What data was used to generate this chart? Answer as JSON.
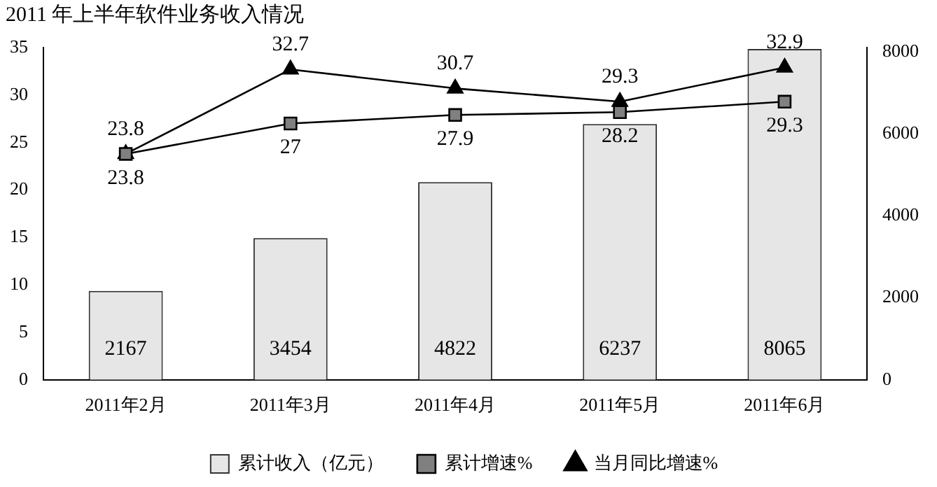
{
  "chart_data": {
    "type": "bar",
    "title": "2011 年上半年软件业务收入情况",
    "categories": [
      "2011年2月",
      "2011年3月",
      "2011年4月",
      "2011年5月",
      "2011年6月"
    ],
    "series": [
      {
        "name": "累计收入（亿元）",
        "axis": "y2",
        "color": "#e6e6e6",
        "values": [
          2167,
          3454,
          4822,
          6237,
          8065
        ]
      },
      {
        "name": "累计增速%",
        "type": "line",
        "axis": "y",
        "color": "#808080",
        "marker": "square",
        "values": [
          23.8,
          27,
          27.9,
          28.2,
          29.3
        ]
      },
      {
        "name": "当月同比增速%",
        "type": "line",
        "axis": "y",
        "color": "#000000",
        "marker": "triangle",
        "values": [
          23.8,
          32.7,
          30.7,
          29.3,
          32.9
        ]
      }
    ],
    "ylim": [
      0,
      35
    ],
    "yticks": [
      0,
      5,
      10,
      15,
      20,
      25,
      30,
      35
    ],
    "y2lim": [
      0,
      8100
    ],
    "y2ticks": [
      0,
      2000,
      4000,
      6000,
      8000
    ],
    "data_labels": true,
    "legend": "bottom",
    "grid": false
  }
}
